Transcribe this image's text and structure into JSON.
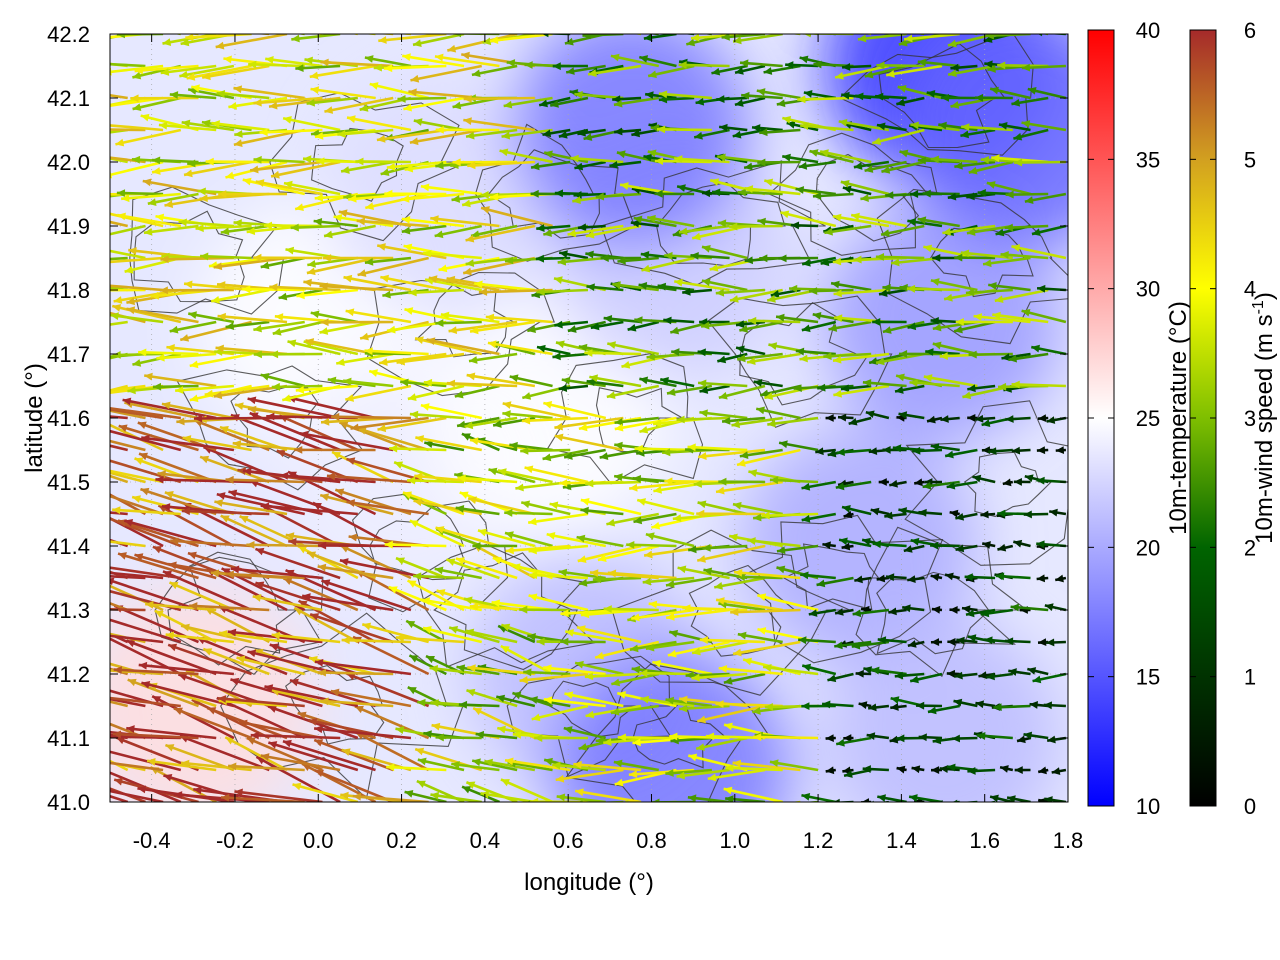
{
  "chart_data": {
    "type": "heatmap",
    "description_free": true,
    "xlabel": "longitude (°)",
    "ylabel": "latitude (°)",
    "xlim": [
      -0.5,
      1.8
    ],
    "ylim": [
      41.0,
      42.2
    ],
    "xticks": [
      "-0.4",
      "-0.2",
      "0.0",
      "0.2",
      "0.4",
      "0.6",
      "0.8",
      "1.0",
      "1.2",
      "1.4",
      "1.6",
      "1.8"
    ],
    "xtick_values": [
      -0.4,
      -0.2,
      0.0,
      0.2,
      0.4,
      0.6,
      0.8,
      1.0,
      1.2,
      1.4,
      1.6,
      1.8
    ],
    "yticks": [
      "41.0",
      "41.1",
      "41.2",
      "41.3",
      "41.4",
      "41.5",
      "41.6",
      "41.7",
      "41.8",
      "41.9",
      "42.0",
      "42.1",
      "42.2"
    ],
    "ytick_values": [
      41.0,
      41.1,
      41.2,
      41.3,
      41.4,
      41.5,
      41.6,
      41.7,
      41.8,
      41.9,
      42.0,
      42.1,
      42.2
    ],
    "grid": true,
    "colorbars": [
      {
        "label": "10m-temperature (°C)",
        "range": [
          10,
          40
        ],
        "ticks": [
          "10",
          "15",
          "20",
          "25",
          "30",
          "35",
          "40"
        ],
        "tick_values": [
          10,
          15,
          20,
          25,
          30,
          35,
          40
        ],
        "colors": [
          "#0000ff",
          "#ffffff",
          "#ff0000"
        ]
      },
      {
        "label_main": "10m-wind speed (m s",
        "label_sup": "-1",
        "label_end": ")",
        "range": [
          0,
          6
        ],
        "ticks": [
          "0",
          "1",
          "2",
          "3",
          "4",
          "5",
          "6"
        ],
        "tick_values": [
          0,
          1,
          2,
          3,
          4,
          5,
          6
        ],
        "colors": [
          "#000000",
          "#006400",
          "#7fbf00",
          "#ffff00",
          "#d2a020",
          "#a52a2a"
        ]
      }
    ],
    "temperature_regions": [
      {
        "lon": -0.3,
        "lat": 41.15,
        "temp": 27
      },
      {
        "lon": 0.0,
        "lat": 41.75,
        "temp": 25
      },
      {
        "lon": 0.2,
        "lat": 41.5,
        "temp": 24
      },
      {
        "lon": 0.55,
        "lat": 41.6,
        "temp": 25
      },
      {
        "lon": 0.3,
        "lat": 41.95,
        "temp": 23
      },
      {
        "lon": 0.85,
        "lat": 41.85,
        "temp": 22
      },
      {
        "lon": 0.65,
        "lat": 41.2,
        "temp": 21
      },
      {
        "lon": 0.85,
        "lat": 41.05,
        "temp": 17
      },
      {
        "lon": 1.3,
        "lat": 41.4,
        "temp": 20
      },
      {
        "lon": 1.5,
        "lat": 41.1,
        "temp": 21
      },
      {
        "lon": 1.5,
        "lat": 41.75,
        "temp": 19
      },
      {
        "lon": 1.5,
        "lat": 42.15,
        "temp": 13
      },
      {
        "lon": 0.75,
        "lat": 42.05,
        "temp": 17
      },
      {
        "lon": 1.7,
        "lat": 42.05,
        "temp": 16
      }
    ],
    "wind_field": {
      "mean_direction": "from east (westward flow)",
      "speed_regions": [
        {
          "lon_range": [
            -0.5,
            0.3
          ],
          "lat_range": [
            41.0,
            41.6
          ],
          "speed": 5.5
        },
        {
          "lon_range": [
            -0.5,
            0.6
          ],
          "lat_range": [
            41.6,
            42.2
          ],
          "speed": 3.8
        },
        {
          "lon_range": [
            0.6,
            1.8
          ],
          "lat_range": [
            41.6,
            42.2
          ],
          "speed": 2.6
        },
        {
          "lon_range": [
            0.3,
            1.2
          ],
          "lat_range": [
            41.0,
            41.6
          ],
          "speed": 3.5
        },
        {
          "lon_range": [
            1.2,
            1.8
          ],
          "lat_range": [
            41.0,
            41.6
          ],
          "speed": 1.2
        }
      ]
    }
  }
}
